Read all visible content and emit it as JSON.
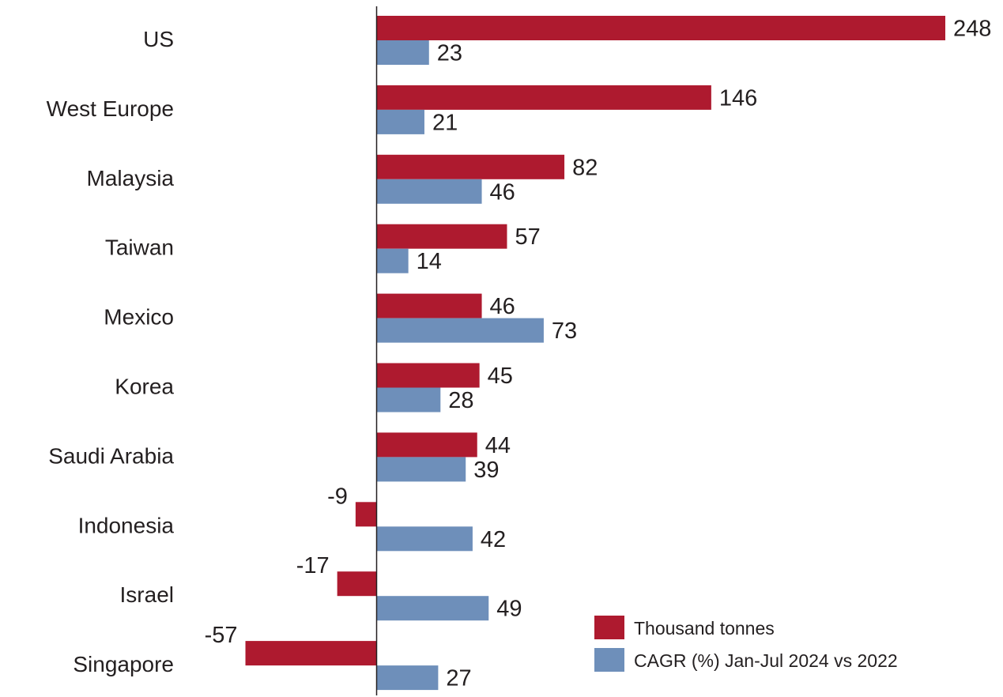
{
  "chart_data": {
    "type": "bar",
    "orientation": "horizontal",
    "categories": [
      "US",
      "West Europe",
      "Malaysia",
      "Taiwan",
      "Mexico",
      "Korea",
      "Saudi Arabia",
      "Indonesia",
      "Israel",
      "Singapore"
    ],
    "series": [
      {
        "name": "Thousand tonnes",
        "color": "#ae1a2f",
        "values": [
          248,
          146,
          82,
          57,
          46,
          45,
          44,
          -9,
          -17,
          -57
        ]
      },
      {
        "name": "CAGR (%) Jan-Jul 2024 vs 2022",
        "color": "#6e8fba",
        "values": [
          23,
          21,
          46,
          14,
          73,
          28,
          39,
          42,
          49,
          27
        ]
      }
    ],
    "xlim": [
      -57,
      248
    ],
    "grid": false,
    "legend_position": "bottom-right",
    "data_labels": true
  }
}
